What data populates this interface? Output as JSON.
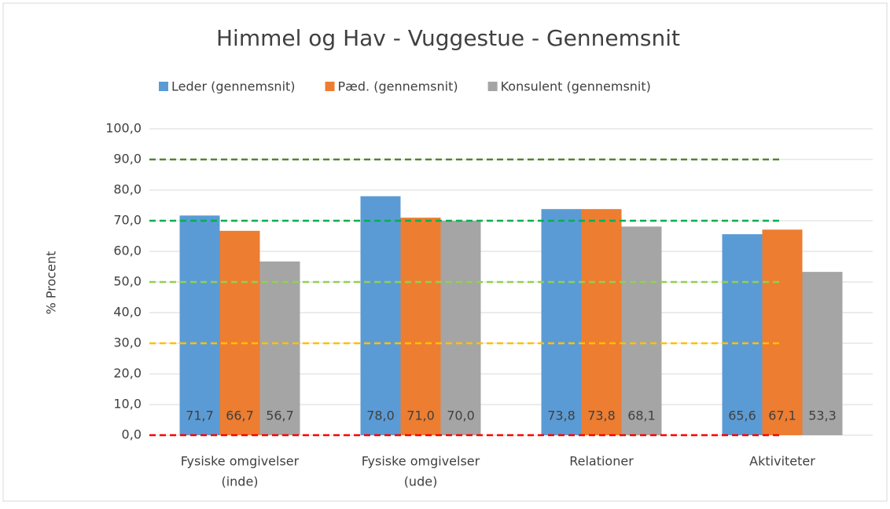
{
  "chart_data": {
    "type": "bar",
    "title": "Himmel og Hav - Vuggestue - Gennemsnit",
    "y_label": "% Procent",
    "categories": [
      [
        "Fysiske omgivelser",
        "(inde)"
      ],
      [
        "Fysiske omgivelser",
        "(ude)"
      ],
      [
        "Relationer"
      ],
      [
        "Aktiviteter"
      ]
    ],
    "series": [
      {
        "name": "Leder (gennemsnit)",
        "color": "#5b9bd5",
        "values": [
          71.7,
          78.0,
          73.8,
          65.6
        ],
        "value_labels": [
          "71,7",
          "78,0",
          "73,8",
          "65,6"
        ]
      },
      {
        "name": "Pæd. (gennemsnit)",
        "color": "#ed7d31",
        "values": [
          66.7,
          71.0,
          73.8,
          67.1
        ],
        "value_labels": [
          "66,7",
          "71,0",
          "73,8",
          "67,1"
        ]
      },
      {
        "name": "Konsulent (gennemsnit)",
        "color": "#a5a5a5",
        "values": [
          56.7,
          70.0,
          68.1,
          53.3
        ],
        "value_labels": [
          "56,7",
          "70,0",
          "68,1",
          "53,3"
        ]
      }
    ],
    "reference_lines": [
      {
        "value": 0,
        "color": "#ff0000"
      },
      {
        "value": 30,
        "color": "#ffc000"
      },
      {
        "value": 50,
        "color": "#92d050"
      },
      {
        "value": 70,
        "color": "#00b050"
      },
      {
        "value": 90,
        "color": "#548235"
      }
    ],
    "ylim": [
      0,
      100
    ],
    "yticks": [
      {
        "value": 0,
        "label": "0,0"
      },
      {
        "value": 10,
        "label": "10,0"
      },
      {
        "value": 20,
        "label": "20,0"
      },
      {
        "value": 30,
        "label": "30,0"
      },
      {
        "value": 40,
        "label": "40,0"
      },
      {
        "value": 50,
        "label": "50,0"
      },
      {
        "value": 60,
        "label": "60,0"
      },
      {
        "value": 70,
        "label": "70,0"
      },
      {
        "value": 80,
        "label": "80,0"
      },
      {
        "value": 90,
        "label": "90,0"
      },
      {
        "value": 100,
        "label": "100,0"
      }
    ],
    "grid": true,
    "legend": "top"
  }
}
